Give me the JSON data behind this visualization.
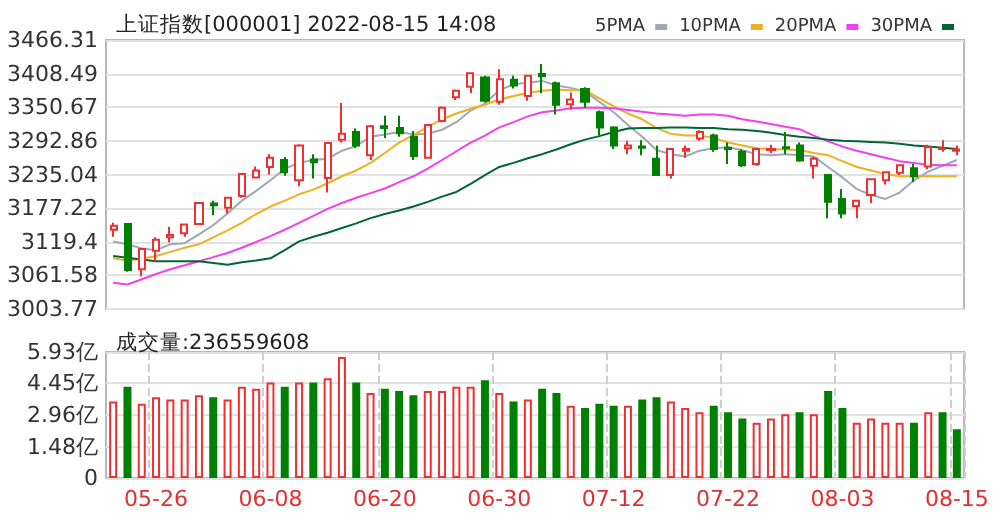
{
  "chart_data": [
    {
      "type": "candlestick",
      "title": "上证指数[000001] 2022-08-15 14:08",
      "legend": "top right",
      "tick_labels": "y",
      "grid": true,
      "categories": [
        null,
        null,
        null,
        null,
        null,
        null,
        null,
        null,
        null,
        null,
        null,
        null,
        null,
        null,
        null,
        null,
        null,
        null,
        null,
        null,
        null,
        null,
        null,
        null,
        null,
        null,
        null,
        null,
        null,
        null,
        null,
        null,
        null,
        null,
        null,
        null,
        null,
        null,
        null,
        null,
        null,
        null,
        null,
        null,
        null,
        null,
        null,
        null,
        null,
        null,
        null,
        null,
        null,
        null,
        null,
        null,
        null,
        null,
        null,
        null
      ],
      "ohlc": [
        [
          3140,
          3152,
          3128,
          3147
        ],
        [
          3150,
          3151,
          3068,
          3071
        ],
        [
          3072,
          3108,
          3060,
          3107
        ],
        [
          3104,
          3127,
          3085,
          3123
        ],
        [
          3127,
          3145,
          3118,
          3131
        ],
        [
          3134,
          3149,
          3128,
          3149
        ],
        [
          3150,
          3186,
          3148,
          3186
        ],
        [
          3185,
          3190,
          3165,
          3182
        ],
        [
          3178,
          3196,
          3168,
          3195
        ],
        [
          3198,
          3237,
          3195,
          3236
        ],
        [
          3230,
          3249,
          3228,
          3242
        ],
        [
          3248,
          3270,
          3235,
          3264
        ],
        [
          3260,
          3265,
          3233,
          3239
        ],
        [
          3225,
          3287,
          3215,
          3285
        ],
        [
          3261,
          3270,
          3228,
          3256
        ],
        [
          3229,
          3290,
          3204,
          3289
        ],
        [
          3295,
          3358,
          3290,
          3305
        ],
        [
          3308,
          3314,
          3280,
          3285
        ],
        [
          3268,
          3320,
          3260,
          3318
        ],
        [
          3318,
          3336,
          3298,
          3315
        ],
        [
          3315,
          3336,
          3300,
          3306
        ],
        [
          3300,
          3310,
          3260,
          3267
        ],
        [
          3264,
          3322,
          3262,
          3320
        ],
        [
          3327,
          3352,
          3325,
          3350
        ],
        [
          3368,
          3381,
          3363,
          3379
        ],
        [
          3386,
          3410,
          3375,
          3409
        ],
        [
          3402,
          3405,
          3359,
          3362
        ],
        [
          3360,
          3416,
          3355,
          3399
        ],
        [
          3398,
          3405,
          3383,
          3388
        ],
        [
          3370,
          3406,
          3362,
          3405
        ],
        [
          3408,
          3425,
          3375,
          3404
        ],
        [
          3392,
          3395,
          3338,
          3355
        ],
        [
          3356,
          3376,
          3347,
          3364
        ],
        [
          3382,
          3385,
          3350,
          3360
        ],
        [
          3342,
          3345,
          3302,
          3316
        ],
        [
          3316,
          3318,
          3279,
          3285
        ],
        [
          3280,
          3293,
          3270,
          3285
        ],
        [
          3283,
          3294,
          3268,
          3281
        ],
        [
          3262,
          3285,
          3233,
          3234
        ],
        [
          3234,
          3280,
          3228,
          3279
        ],
        [
          3276,
          3285,
          3264,
          3279
        ],
        [
          3297,
          3311,
          3293,
          3308
        ],
        [
          3302,
          3305,
          3274,
          3279
        ],
        [
          3281,
          3290,
          3253,
          3279
        ],
        [
          3274,
          3278,
          3248,
          3251
        ],
        [
          3253,
          3281,
          3250,
          3279
        ],
        [
          3277,
          3286,
          3272,
          3279
        ],
        [
          3282,
          3308,
          3270,
          3280
        ],
        [
          3285,
          3290,
          3257,
          3259
        ],
        [
          3250,
          3265,
          3228,
          3262
        ],
        [
          3234,
          3236,
          3160,
          3188
        ],
        [
          3193,
          3210,
          3160,
          3168
        ],
        [
          3181,
          3190,
          3160,
          3190
        ],
        [
          3200,
          3228,
          3186,
          3227
        ],
        [
          3225,
          3240,
          3218,
          3239
        ],
        [
          3238,
          3252,
          3234,
          3251
        ],
        [
          3246,
          3253,
          3222,
          3232
        ],
        [
          3249,
          3286,
          3244,
          3282
        ],
        [
          3279,
          3294,
          3274,
          3280
        ],
        [
          3276,
          3285,
          3268,
          3278
        ]
      ],
      "colors": [
        "#f03030",
        "#008000",
        "#f03030",
        "#f03030",
        "#f03030",
        "#f03030",
        "#f03030",
        "#008000",
        "#f03030",
        "#f03030",
        "#f03030",
        "#f03030",
        "#008000",
        "#f03030",
        "#008000",
        "#f03030",
        "#f03030",
        "#008000",
        "#f03030",
        "#008000",
        "#008000",
        "#008000",
        "#f03030",
        "#f03030",
        "#f03030",
        "#f03030",
        "#008000",
        "#f03030",
        "#008000",
        "#f03030",
        "#008000",
        "#008000",
        "#f03030",
        "#008000",
        "#008000",
        "#008000",
        "#f03030",
        "#008000",
        "#008000",
        "#f03030",
        "#f03030",
        "#f03030",
        "#008000",
        "#008000",
        "#008000",
        "#f03030",
        "#f03030",
        "#008000",
        "#008000",
        "#f03030",
        "#008000",
        "#008000",
        "#f03030",
        "#f03030",
        "#f03030",
        "#f03030",
        "#008000",
        "#f03030",
        "#f03030",
        "#f03030"
      ],
      "series": [
        {
          "type": "line",
          "name": "5PMA",
          "color": "#a0a8b4",
          "values": [
            3120,
            3115,
            3108,
            3105,
            3115,
            3117,
            3132,
            3148,
            3168,
            3190,
            3207,
            3225,
            3245,
            3255,
            3260,
            3262,
            3276,
            3284,
            3300,
            3304,
            3308,
            3304,
            3305,
            3312,
            3325,
            3345,
            3357,
            3380,
            3390,
            3393,
            3396,
            3388,
            3384,
            3378,
            3360,
            3342,
            3320,
            3300,
            3277,
            3270,
            3266,
            3276,
            3280,
            3282,
            3277,
            3270,
            3268,
            3270,
            3268,
            3266,
            3248,
            3230,
            3210,
            3200,
            3193,
            3204,
            3225,
            3240,
            3250,
            3260
          ]
        },
        {
          "type": "line",
          "name": "10PMA",
          "color": "#f0b020",
          "values": [
            3091,
            3087,
            3090,
            3095,
            3102,
            3109,
            3115,
            3127,
            3139,
            3152,
            3167,
            3180,
            3190,
            3201,
            3209,
            3220,
            3232,
            3242,
            3255,
            3272,
            3290,
            3303,
            3317,
            3330,
            3340,
            3348,
            3355,
            3364,
            3370,
            3375,
            3379,
            3381,
            3380,
            3380,
            3366,
            3352,
            3340,
            3330,
            3315,
            3305,
            3302,
            3302,
            3298,
            3290,
            3285,
            3280,
            3279,
            3278,
            3277,
            3272,
            3268,
            3258,
            3248,
            3242,
            3236,
            3232,
            3232,
            3232,
            3232,
            3232
          ]
        },
        {
          "type": "line",
          "name": "20PMA",
          "color": "#f040f0",
          "values": [
            3049,
            3046,
            3055,
            3064,
            3072,
            3079,
            3086,
            3093,
            3100,
            3109,
            3119,
            3129,
            3140,
            3152,
            3164,
            3176,
            3186,
            3195,
            3203,
            3211,
            3222,
            3232,
            3245,
            3260,
            3275,
            3290,
            3302,
            3316,
            3325,
            3335,
            3342,
            3345,
            3349,
            3350,
            3350,
            3349,
            3346,
            3343,
            3340,
            3338,
            3336,
            3338,
            3338,
            3336,
            3330,
            3326,
            3322,
            3317,
            3313,
            3302,
            3292,
            3283,
            3276,
            3270,
            3264,
            3258,
            3255,
            3252,
            3251,
            3251
          ]
        },
        {
          "type": "line",
          "name": "30PMA",
          "color": "#006633",
          "values": [
            3095,
            3092,
            3089,
            3086,
            3086,
            3086,
            3086,
            3083,
            3080,
            3084,
            3087,
            3091,
            3105,
            3120,
            3128,
            3135,
            3143,
            3151,
            3160,
            3167,
            3173,
            3180,
            3188,
            3197,
            3205,
            3219,
            3234,
            3248,
            3255,
            3263,
            3270,
            3278,
            3287,
            3295,
            3301,
            3308,
            3314,
            3315,
            3315,
            3316,
            3316,
            3315,
            3315,
            3313,
            3312,
            3310,
            3307,
            3303,
            3300,
            3298,
            3295,
            3293,
            3292,
            3291,
            3290,
            3288,
            3285,
            3283,
            3281,
            3279
          ]
        }
      ],
      "ylim": [
        3003.77,
        3466.31
      ],
      "yticks": [
        3003.77,
        3061.58,
        3119.4,
        3177.22,
        3235.04,
        3292.86,
        3350.67,
        3408.49,
        3466.31
      ]
    },
    {
      "type": "bar",
      "title": "成交量:236559608",
      "grid": true,
      "categories": [
        null,
        null,
        null,
        "05-26",
        null,
        null,
        null,
        null,
        null,
        null,
        null,
        "06-08",
        null,
        null,
        null,
        null,
        null,
        null,
        null,
        "06-20",
        null,
        null,
        null,
        null,
        null,
        null,
        null,
        "06-30",
        null,
        null,
        null,
        null,
        null,
        null,
        null,
        "07-12",
        null,
        null,
        null,
        null,
        null,
        null,
        null,
        "07-22",
        null,
        null,
        null,
        null,
        null,
        null,
        null,
        "08-03",
        null,
        null,
        null,
        null,
        null,
        null,
        null,
        "08-15"
      ],
      "values": [
        3.6,
        4.3,
        3.5,
        3.8,
        3.7,
        3.7,
        3.9,
        3.8,
        3.7,
        4.3,
        4.2,
        4.5,
        4.3,
        4.5,
        4.5,
        4.7,
        5.7,
        4.5,
        4.0,
        4.2,
        4.1,
        3.9,
        4.1,
        4.1,
        4.3,
        4.3,
        4.6,
        4.0,
        3.6,
        3.7,
        4.2,
        4.0,
        3.4,
        3.3,
        3.5,
        3.4,
        3.4,
        3.7,
        3.8,
        3.6,
        3.3,
        3.1,
        3.4,
        3.1,
        2.8,
        2.6,
        2.8,
        3.0,
        3.1,
        3.0,
        4.1,
        3.3,
        2.6,
        2.8,
        2.6,
        2.6,
        2.6,
        3.1,
        3.1,
        2.3
      ],
      "colors": [
        "#f03030",
        "#008000",
        "#f03030",
        "#f03030",
        "#f03030",
        "#f03030",
        "#f03030",
        "#008000",
        "#f03030",
        "#f03030",
        "#f03030",
        "#f03030",
        "#008000",
        "#f03030",
        "#008000",
        "#f03030",
        "#f03030",
        "#008000",
        "#f03030",
        "#008000",
        "#008000",
        "#008000",
        "#f03030",
        "#f03030",
        "#f03030",
        "#f03030",
        "#008000",
        "#f03030",
        "#008000",
        "#f03030",
        "#008000",
        "#008000",
        "#f03030",
        "#008000",
        "#008000",
        "#008000",
        "#f03030",
        "#008000",
        "#008000",
        "#f03030",
        "#f03030",
        "#f03030",
        "#008000",
        "#008000",
        "#008000",
        "#f03030",
        "#f03030",
        "#f03030",
        "#008000",
        "#f03030",
        "#008000",
        "#008000",
        "#f03030",
        "#f03030",
        "#f03030",
        "#f03030",
        "#008000",
        "#f03030",
        "#008000",
        "#008000"
      ],
      "ylim": [
        0,
        5.93
      ],
      "yticks": [
        0,
        {
          "value": 1.48,
          "label": "1.48亿"
        },
        {
          "value": 2.96,
          "label": "2.96亿"
        },
        {
          "value": 4.45,
          "label": "4.45亿"
        },
        {
          "value": 5.93,
          "label": "5.93亿"
        }
      ]
    }
  ]
}
